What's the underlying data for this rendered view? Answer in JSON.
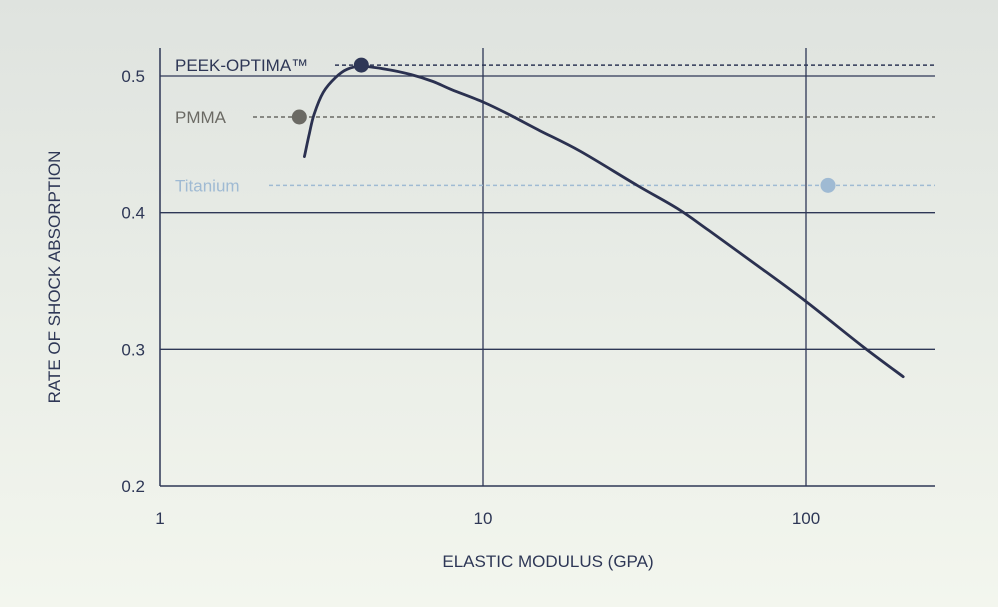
{
  "chart_data": {
    "type": "line",
    "xlabel": "ELASTIC MODULUS (GPA)",
    "ylabel": "RATE OF SHOCK ABSORPTION",
    "x_scale": "log",
    "xlim": [
      1,
      220
    ],
    "ylim": [
      0.2,
      0.52
    ],
    "x_ticks": [
      1,
      10,
      100
    ],
    "x_tick_labels": [
      "1",
      "10",
      "100"
    ],
    "y_ticks": [
      0.2,
      0.3,
      0.4,
      0.5
    ],
    "y_tick_labels": [
      "0.2",
      "0.3",
      "0.4",
      "0.5"
    ],
    "grid": true,
    "curve": {
      "x": [
        2.8,
        2.9,
        3.0,
        3.2,
        3.5,
        3.8,
        4.2,
        5,
        6,
        7,
        8,
        10,
        12,
        15,
        20,
        30,
        40,
        50,
        70,
        100,
        150,
        200
      ],
      "y": [
        0.441,
        0.458,
        0.472,
        0.488,
        0.499,
        0.505,
        0.507,
        0.505,
        0.501,
        0.496,
        0.49,
        0.481,
        0.472,
        0.46,
        0.445,
        0.42,
        0.403,
        0.387,
        0.362,
        0.335,
        0.302,
        0.28
      ]
    },
    "materials": [
      {
        "name": "PEEK-OPTIMA™",
        "x": 4.2,
        "y": 0.508,
        "color": "#2e3756"
      },
      {
        "name": "PMMA",
        "x": 2.7,
        "y": 0.47,
        "color": "#6b6a64"
      },
      {
        "name": "Titanium",
        "x": 117,
        "y": 0.42,
        "color": "#9fbad3"
      }
    ],
    "colors": {
      "axis": "#2e3756",
      "curve": "#2b3150",
      "grid": "#2e3756"
    }
  }
}
